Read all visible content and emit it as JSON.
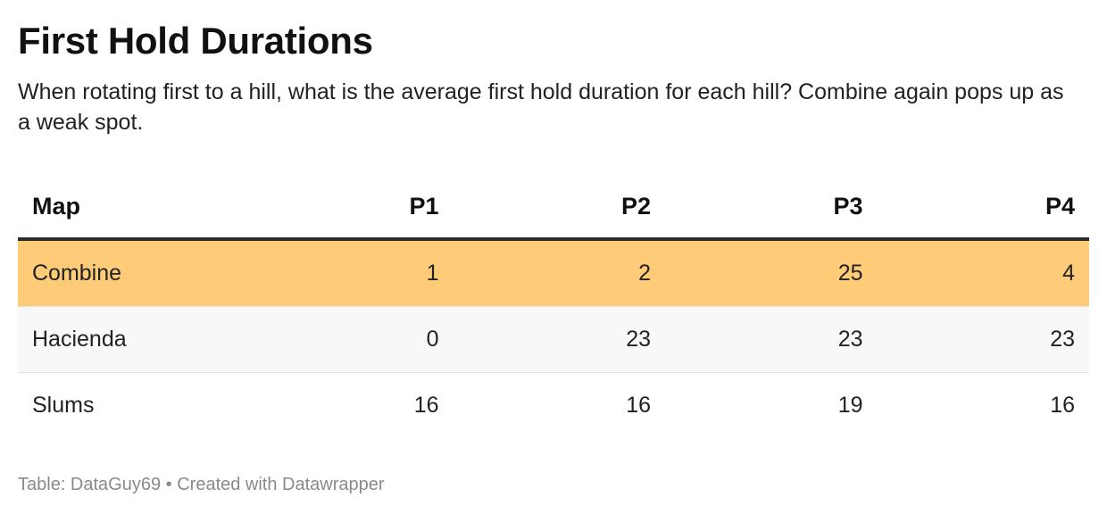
{
  "title": "First Hold Durations",
  "subtitle": "When rotating first to a hill, what is the average first hold duration for each hill? Combine again pops up as a weak spot.",
  "footer": "Table: DataGuy69 • Created with Datawrapper",
  "colors": {
    "highlight_row": "#fecb78",
    "striped_row": "#f8f8f8",
    "plain_row": "#ffffff"
  },
  "chart_data": {
    "type": "table",
    "title": "First Hold Durations",
    "subtitle": "When rotating first to a hill, what is the average first hold duration for each hill? Combine again pops up as a weak spot.",
    "columns": [
      "Map",
      "P1",
      "P2",
      "P3",
      "P4"
    ],
    "rows": [
      {
        "map": "Combine",
        "values": [
          "1",
          "2",
          "25",
          "4"
        ],
        "highlight": true
      },
      {
        "map": "Hacienda",
        "values": [
          "0",
          "23",
          "23",
          "23"
        ],
        "highlight": false
      },
      {
        "map": "Slums",
        "values": [
          "16",
          "16",
          "19",
          "16"
        ],
        "highlight": false
      }
    ]
  }
}
